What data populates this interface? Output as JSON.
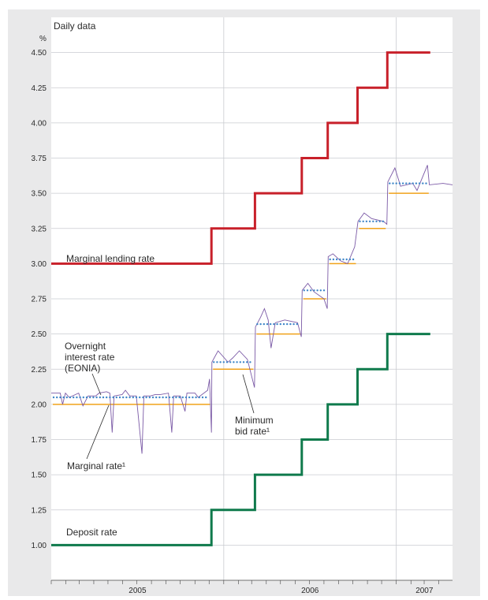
{
  "chart_data": {
    "type": "line",
    "title": "Daily data",
    "ylabel": "%",
    "ylim": [
      0.75,
      4.75
    ],
    "y_ticks": [
      "1.00",
      "1.25",
      "1.50",
      "1.75",
      "2.00",
      "2.25",
      "2.50",
      "2.75",
      "3.00",
      "3.25",
      "3.50",
      "3.75",
      "4.00",
      "4.25",
      "4.50"
    ],
    "x_labels": [
      "2005",
      "2006",
      "2007"
    ],
    "xlim": [
      "2005-01-01",
      "2007-04-30"
    ],
    "grid": true,
    "legend": "none",
    "colors": {
      "marginal_lending": "#c8202a",
      "deposit": "#0f7a4c",
      "eonia": "#7b5aa6",
      "minimum_bid": "#f0a21a",
      "marginal_dots": "#3f86c8"
    },
    "policy_dates": [
      "2005-01-01",
      "2005-12-06",
      "2006-03-08",
      "2006-06-15",
      "2006-08-09",
      "2006-10-11",
      "2006-12-13",
      "2007-03-14",
      "2007-04-30"
    ],
    "series": [
      {
        "name": "Marginal lending rate",
        "style": "step",
        "values": [
          3.0,
          3.25,
          3.5,
          3.75,
          4.0,
          4.25,
          4.5
        ]
      },
      {
        "name": "Deposit rate",
        "style": "step",
        "values": [
          1.0,
          1.25,
          1.5,
          1.75,
          2.0,
          2.25,
          2.5
        ]
      },
      {
        "name": "Minimum bid rate¹",
        "style": "segments",
        "values": [
          2.0,
          2.25,
          2.5,
          2.75,
          3.0,
          3.25,
          3.5
        ]
      },
      {
        "name": "Marginal rate¹",
        "style": "dots",
        "values": [
          2.05,
          2.3,
          2.57,
          2.81,
          3.03,
          3.3,
          3.57
        ]
      },
      {
        "name": "Overnight interest rate (EONIA)",
        "style": "line",
        "points": [
          [
            "2005-01-01",
            2.08
          ],
          [
            "2005-01-20",
            2.08
          ],
          [
            "2005-01-25",
            2.0
          ],
          [
            "2005-01-31",
            2.08
          ],
          [
            "2005-02-08",
            2.05
          ],
          [
            "2005-02-28",
            2.08
          ],
          [
            "2005-03-09",
            1.99
          ],
          [
            "2005-03-20",
            2.06
          ],
          [
            "2005-04-05",
            2.06
          ],
          [
            "2005-04-12",
            2.08
          ],
          [
            "2005-04-28",
            2.09
          ],
          [
            "2005-05-05",
            2.08
          ],
          [
            "2005-05-10",
            1.8
          ],
          [
            "2005-05-14",
            2.06
          ],
          [
            "2005-05-31",
            2.07
          ],
          [
            "2005-06-07",
            2.1
          ],
          [
            "2005-06-16",
            2.06
          ],
          [
            "2005-06-30",
            2.06
          ],
          [
            "2005-07-12",
            1.65
          ],
          [
            "2005-07-16",
            2.06
          ],
          [
            "2005-07-30",
            2.06
          ],
          [
            "2005-08-09",
            2.07
          ],
          [
            "2005-08-20",
            2.07
          ],
          [
            "2005-09-06",
            2.08
          ],
          [
            "2005-09-13",
            1.8
          ],
          [
            "2005-09-17",
            2.06
          ],
          [
            "2005-10-01",
            2.06
          ],
          [
            "2005-10-11",
            1.95
          ],
          [
            "2005-10-15",
            2.08
          ],
          [
            "2005-11-01",
            2.08
          ],
          [
            "2005-11-08",
            2.05
          ],
          [
            "2005-11-28",
            2.1
          ],
          [
            "2005-12-02",
            2.18
          ],
          [
            "2005-12-06",
            1.8
          ],
          [
            "2005-12-07",
            2.3
          ],
          [
            "2005-12-20",
            2.38
          ],
          [
            "2006-01-10",
            2.3
          ],
          [
            "2006-01-20",
            2.33
          ],
          [
            "2006-02-03",
            2.38
          ],
          [
            "2006-02-20",
            2.32
          ],
          [
            "2006-03-07",
            2.12
          ],
          [
            "2006-03-09",
            2.55
          ],
          [
            "2006-03-20",
            2.62
          ],
          [
            "2006-03-28",
            2.68
          ],
          [
            "2006-04-05",
            2.6
          ],
          [
            "2006-04-11",
            2.4
          ],
          [
            "2006-04-20",
            2.58
          ],
          [
            "2006-05-10",
            2.6
          ],
          [
            "2006-06-06",
            2.58
          ],
          [
            "2006-06-14",
            2.48
          ],
          [
            "2006-06-16",
            2.81
          ],
          [
            "2006-06-28",
            2.86
          ],
          [
            "2006-07-11",
            2.8
          ],
          [
            "2006-08-01",
            2.75
          ],
          [
            "2006-08-08",
            2.68
          ],
          [
            "2006-08-10",
            3.05
          ],
          [
            "2006-08-20",
            3.07
          ],
          [
            "2006-09-05",
            3.02
          ],
          [
            "2006-09-20",
            3.0
          ],
          [
            "2006-10-05",
            3.12
          ],
          [
            "2006-10-12",
            3.3
          ],
          [
            "2006-10-25",
            3.36
          ],
          [
            "2006-11-10",
            3.32
          ],
          [
            "2006-12-05",
            3.3
          ],
          [
            "2006-12-12",
            3.28
          ],
          [
            "2006-12-14",
            3.58
          ],
          [
            "2006-12-29",
            3.68
          ],
          [
            "2007-01-10",
            3.55
          ],
          [
            "2007-02-05",
            3.57
          ],
          [
            "2007-02-14",
            3.52
          ],
          [
            "2007-03-08",
            3.7
          ],
          [
            "2007-03-12",
            3.56
          ],
          [
            "2007-04-10",
            3.57
          ],
          [
            "2007-04-30",
            3.56
          ]
        ]
      }
    ],
    "annotations": {
      "marginal_lending": "Marginal lending rate",
      "eonia_line1": "Overnight",
      "eonia_line2": "interest rate",
      "eonia_line3": "(EONIA)",
      "minimum_bid_line1": "Minimum",
      "minimum_bid_line2": "bid rate¹",
      "marginal_rate": "Marginal rate¹",
      "deposit": "Deposit rate"
    }
  }
}
